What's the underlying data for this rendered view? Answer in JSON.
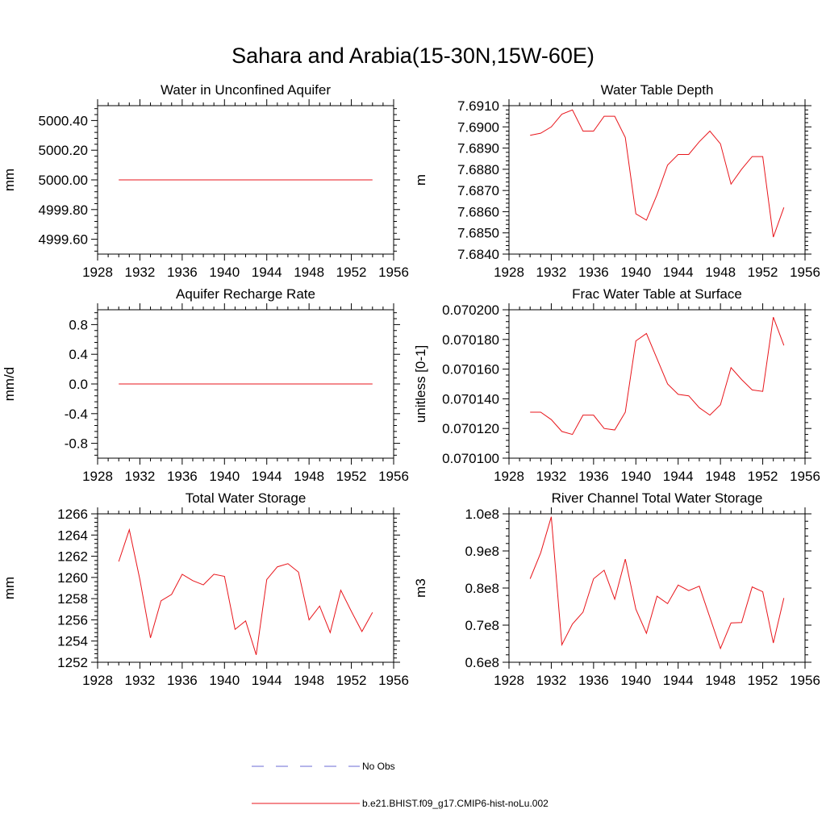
{
  "title": "Sahara and Arabia(15-30N,15W-60E)",
  "legend": [
    {
      "label": "No Obs",
      "color": "#6b6bd6",
      "dash": "dashed"
    },
    {
      "label": "b.e21.BHIST.f09_g17.CMIP6-hist-noLu.002",
      "color": "#e8151b",
      "dash": "solid"
    }
  ],
  "chart_data": [
    {
      "type": "line",
      "title": "Water in Unconfined Aquifer",
      "ylabel": "mm",
      "xlim": [
        1928,
        1956
      ],
      "ylim": [
        4999.5,
        5000.5
      ],
      "xticks": [
        1928,
        1932,
        1936,
        1940,
        1944,
        1948,
        1952,
        1956
      ],
      "yticks": [
        4999.6,
        4999.8,
        5000.0,
        5000.2,
        5000.4
      ],
      "yticklabels": [
        "4999.60",
        "4999.80",
        "5000.00",
        "5000.20",
        "5000.40"
      ],
      "series": [
        {
          "x": [
            1930,
            1931,
            1932,
            1933,
            1934,
            1935,
            1936,
            1937,
            1938,
            1939,
            1940,
            1941,
            1942,
            1943,
            1944,
            1945,
            1946,
            1947,
            1948,
            1949,
            1950,
            1951,
            1952,
            1953,
            1954
          ],
          "values": [
            5000,
            5000,
            5000,
            5000,
            5000,
            5000,
            5000,
            5000,
            5000,
            5000,
            5000,
            5000,
            5000,
            5000,
            5000,
            5000,
            5000,
            5000,
            5000,
            5000,
            5000,
            5000,
            5000,
            5000,
            5000
          ]
        }
      ]
    },
    {
      "type": "line",
      "title": "Water Table Depth",
      "ylabel": "m",
      "xlim": [
        1928,
        1956
      ],
      "ylim": [
        7.684,
        7.691
      ],
      "xticks": [
        1928,
        1932,
        1936,
        1940,
        1944,
        1948,
        1952,
        1956
      ],
      "yticks": [
        7.684,
        7.685,
        7.686,
        7.687,
        7.688,
        7.689,
        7.69,
        7.691
      ],
      "yticklabels": [
        "7.6840",
        "7.6850",
        "7.6860",
        "7.6870",
        "7.6880",
        "7.6890",
        "7.6900",
        "7.6910"
      ],
      "series": [
        {
          "x": [
            1930,
            1931,
            1932,
            1933,
            1934,
            1935,
            1936,
            1937,
            1938,
            1939,
            1940,
            1941,
            1942,
            1943,
            1944,
            1945,
            1946,
            1947,
            1948,
            1949,
            1950,
            1951,
            1952,
            1953,
            1954
          ],
          "values": [
            7.6896,
            7.6897,
            7.69,
            7.6906,
            7.6908,
            7.6898,
            7.6898,
            7.6905,
            7.6905,
            7.6895,
            7.6859,
            7.6856,
            7.6868,
            7.6882,
            7.6887,
            7.6887,
            7.6893,
            7.6898,
            7.6892,
            7.6873,
            7.688,
            7.6886,
            7.6886,
            7.6848,
            7.6862
          ]
        }
      ]
    },
    {
      "type": "line",
      "title": "Aquifer Recharge Rate",
      "ylabel": "mm/d",
      "xlim": [
        1928,
        1956
      ],
      "ylim": [
        -1.0,
        1.0
      ],
      "xticks": [
        1928,
        1932,
        1936,
        1940,
        1944,
        1948,
        1952,
        1956
      ],
      "yticks": [
        -0.8,
        -0.4,
        0.0,
        0.4,
        0.8
      ],
      "yticklabels": [
        "-0.8",
        "-0.4",
        "0.0",
        "0.4",
        "0.8"
      ],
      "series": [
        {
          "x": [
            1930,
            1931,
            1932,
            1933,
            1934,
            1935,
            1936,
            1937,
            1938,
            1939,
            1940,
            1941,
            1942,
            1943,
            1944,
            1945,
            1946,
            1947,
            1948,
            1949,
            1950,
            1951,
            1952,
            1953,
            1954
          ],
          "values": [
            0,
            0,
            0,
            0,
            0,
            0,
            0,
            0,
            0,
            0,
            0,
            0,
            0,
            0,
            0,
            0,
            0,
            0,
            0,
            0,
            0,
            0,
            0,
            0,
            0
          ]
        }
      ]
    },
    {
      "type": "line",
      "title": "Frac Water Table at Surface",
      "ylabel": "unitless [0-1]",
      "xlim": [
        1928,
        1956
      ],
      "ylim": [
        0.0701,
        0.0702
      ],
      "xticks": [
        1928,
        1932,
        1936,
        1940,
        1944,
        1948,
        1952,
        1956
      ],
      "yticks": [
        0.0701,
        0.07012,
        0.07014,
        0.07016,
        0.07018,
        0.0702
      ],
      "yticklabels": [
        "0.070100",
        "0.070120",
        "0.070140",
        "0.070160",
        "0.070180",
        "0.070200"
      ],
      "series": [
        {
          "x": [
            1930,
            1931,
            1932,
            1933,
            1934,
            1935,
            1936,
            1937,
            1938,
            1939,
            1940,
            1941,
            1942,
            1943,
            1944,
            1945,
            1946,
            1947,
            1948,
            1949,
            1950,
            1951,
            1952,
            1953,
            1954
          ],
          "values": [
            0.070131,
            0.070131,
            0.070126,
            0.070118,
            0.070116,
            0.070129,
            0.070129,
            0.07012,
            0.070119,
            0.070131,
            0.070179,
            0.070184,
            0.070167,
            0.07015,
            0.070143,
            0.070142,
            0.070134,
            0.070129,
            0.070136,
            0.070161,
            0.070153,
            0.070146,
            0.070145,
            0.070195,
            0.070176
          ]
        }
      ]
    },
    {
      "type": "line",
      "title": "Total Water Storage",
      "ylabel": "mm",
      "xlim": [
        1928,
        1956
      ],
      "ylim": [
        1252,
        1266
      ],
      "xticks": [
        1928,
        1932,
        1936,
        1940,
        1944,
        1948,
        1952,
        1956
      ],
      "yticks": [
        1252,
        1254,
        1256,
        1258,
        1260,
        1262,
        1264,
        1266
      ],
      "yticklabels": [
        "1252",
        "1254",
        "1256",
        "1258",
        "1260",
        "1262",
        "1264",
        "1266"
      ],
      "series": [
        {
          "x": [
            1930,
            1931,
            1932,
            1933,
            1934,
            1935,
            1936,
            1937,
            1938,
            1939,
            1940,
            1941,
            1942,
            1943,
            1944,
            1945,
            1946,
            1947,
            1948,
            1949,
            1950,
            1951,
            1952,
            1953,
            1954
          ],
          "values": [
            1261.5,
            1264.5,
            1259.8,
            1254.3,
            1257.8,
            1258.4,
            1260.3,
            1259.7,
            1259.3,
            1260.3,
            1260.1,
            1255.1,
            1255.9,
            1252.7,
            1259.8,
            1261.0,
            1261.3,
            1260.5,
            1256.0,
            1257.3,
            1254.8,
            1258.8,
            1256.8,
            1254.9,
            1256.7
          ]
        }
      ]
    },
    {
      "type": "line",
      "title": "River Channel Total Water Storage",
      "ylabel": "m3",
      "xlim": [
        1928,
        1956
      ],
      "ylim": [
        60000000,
        100000000
      ],
      "xticks": [
        1928,
        1932,
        1936,
        1940,
        1944,
        1948,
        1952,
        1956
      ],
      "yticks": [
        60000000,
        70000000,
        80000000,
        90000000,
        100000000
      ],
      "yticklabels": [
        "0.6e8",
        "0.7e8",
        "0.8e8",
        "0.9e8",
        "1.0e8"
      ],
      "series": [
        {
          "x": [
            1930,
            1931,
            1932,
            1933,
            1934,
            1935,
            1936,
            1937,
            1938,
            1939,
            1940,
            1941,
            1942,
            1943,
            1944,
            1945,
            1946,
            1947,
            1948,
            1949,
            1950,
            1951,
            1952,
            1953,
            1954
          ],
          "values": [
            82500000,
            89500000,
            99200000,
            64700000,
            70300000,
            73500000,
            82500000,
            84800000,
            77000000,
            87800000,
            74300000,
            67800000,
            77800000,
            75800000,
            80800000,
            79300000,
            80500000,
            72100000,
            63700000,
            70600000,
            70700000,
            80300000,
            79000000,
            65200000,
            77300000
          ]
        }
      ]
    }
  ]
}
